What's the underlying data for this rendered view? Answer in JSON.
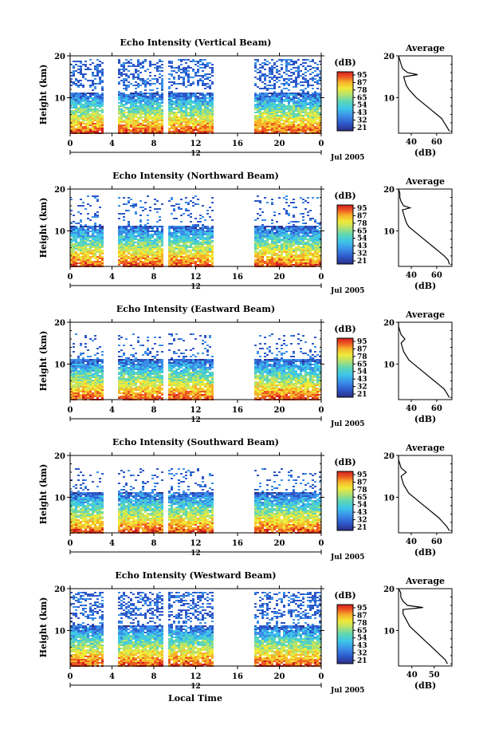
{
  "figure": {
    "colorbar": {
      "unit": "(dB)",
      "ticks": [
        "95",
        "87",
        "78",
        "65",
        "54",
        "43",
        "32",
        "21"
      ],
      "colors": [
        "#2b2f86",
        "#2d57c8",
        "#3b8ee8",
        "#3ec6e8",
        "#5fd6b4",
        "#b8e36a",
        "#f0ea3a",
        "#f6b42a",
        "#ee5a22",
        "#d31f1f"
      ]
    },
    "date_label": "Jul 2005",
    "mid_label": "12",
    "x_axis_title": "Local Time",
    "y_axis_title": "Height (km)",
    "avg_title": "Average",
    "avg_xlabel": "(dB)"
  },
  "chart_data": [
    {
      "type": "heatmap",
      "title": "Echo Intensity (Vertical Beam)",
      "ylabel": "Height (km)",
      "x_ticks": [
        "0",
        "4",
        "8",
        "12",
        "16",
        "20",
        "0"
      ],
      "y_ticks": [
        "20",
        "10"
      ],
      "xlim": [
        0,
        24
      ],
      "ylim": [
        1.5,
        20
      ],
      "gaps": [
        [
          3.2,
          4.4
        ],
        [
          8.9,
          9.2
        ],
        [
          13.5,
          17.4
        ]
      ],
      "echo_top_km": 19.5,
      "profile": {
        "title": "Average",
        "xlabel": "(dB)",
        "x_ticks": [
          "40",
          "60"
        ],
        "xlim": [
          30,
          72
        ],
        "height_km": [
          2,
          3,
          4,
          5,
          6,
          7,
          8,
          9,
          10,
          11,
          12,
          13,
          14,
          15,
          15.5,
          16,
          17,
          18,
          19,
          20
        ],
        "value_db": [
          70,
          68,
          66,
          64,
          60,
          56,
          52,
          48,
          44,
          41,
          38,
          36,
          35,
          34,
          45,
          37,
          33,
          32,
          31,
          30
        ]
      }
    },
    {
      "type": "heatmap",
      "title": "Echo Intensity (Northward Beam)",
      "ylabel": "Height (km)",
      "x_ticks": [
        "0",
        "4",
        "8",
        "12",
        "16",
        "20",
        "0"
      ],
      "y_ticks": [
        "20",
        "10"
      ],
      "xlim": [
        0,
        24
      ],
      "ylim": [
        1.5,
        20
      ],
      "gaps": [
        [
          3.2,
          4.4
        ],
        [
          8.9,
          9.3
        ],
        [
          13.5,
          17.4
        ]
      ],
      "echo_top_km": 18.5,
      "profile": {
        "title": "Average",
        "xlabel": "(dB)",
        "x_ticks": [
          "40",
          "60"
        ],
        "xlim": [
          30,
          72
        ],
        "height_km": [
          2,
          3,
          4,
          5,
          6,
          7,
          8,
          9,
          10,
          11,
          12,
          13,
          14,
          15,
          15.5,
          16,
          17,
          18,
          19,
          20
        ],
        "value_db": [
          70,
          69,
          66,
          62,
          58,
          54,
          50,
          46,
          42,
          38,
          36,
          35,
          34,
          33,
          39,
          34,
          32,
          31,
          31,
          30
        ]
      }
    },
    {
      "type": "heatmap",
      "title": "Echo Intensity (Eastward Beam)",
      "ylabel": "Height (km)",
      "x_ticks": [
        "0",
        "4",
        "8",
        "12",
        "16",
        "20",
        "0"
      ],
      "y_ticks": [
        "20",
        "10"
      ],
      "xlim": [
        0,
        24
      ],
      "ylim": [
        1.5,
        20
      ],
      "gaps": [
        [
          3.2,
          4.4
        ],
        [
          8.9,
          9.3
        ],
        [
          13.5,
          17.4
        ]
      ],
      "echo_top_km": 17.5,
      "profile": {
        "title": "Average",
        "xlabel": "(dB)",
        "x_ticks": [
          "40",
          "60"
        ],
        "xlim": [
          30,
          72
        ],
        "height_km": [
          2,
          3,
          4,
          5,
          6,
          7,
          8,
          9,
          10,
          11,
          12,
          13,
          14,
          15,
          16,
          17,
          18,
          19,
          20
        ],
        "value_db": [
          70,
          68,
          66,
          62,
          58,
          54,
          50,
          46,
          42,
          38,
          36,
          34,
          33,
          32,
          35,
          32,
          31,
          30,
          30
        ]
      }
    },
    {
      "type": "heatmap",
      "title": "Echo Intensity (Southward Beam)",
      "ylabel": "Height (km)",
      "x_ticks": [
        "0",
        "4",
        "8",
        "12",
        "16",
        "20",
        "0"
      ],
      "y_ticks": [
        "20",
        "10"
      ],
      "xlim": [
        0,
        24
      ],
      "ylim": [
        1.5,
        20
      ],
      "gaps": [
        [
          3.2,
          4.4
        ],
        [
          8.9,
          9.3
        ],
        [
          13.5,
          17.4
        ]
      ],
      "echo_top_km": 17.0,
      "profile": {
        "title": "Average",
        "xlabel": "(dB)",
        "x_ticks": [
          "40",
          "60"
        ],
        "xlim": [
          30,
          72
        ],
        "height_km": [
          2,
          3,
          4,
          5,
          6,
          7,
          8,
          9,
          10,
          11,
          12,
          13,
          14,
          15,
          16,
          17,
          18,
          19,
          20
        ],
        "value_db": [
          70,
          68,
          65,
          62,
          58,
          54,
          50,
          46,
          42,
          38,
          36,
          34,
          33,
          32,
          36,
          32,
          31,
          30,
          30
        ]
      }
    },
    {
      "type": "heatmap",
      "title": "Echo Intensity (Westward Beam)",
      "ylabel": "Height (km)",
      "x_ticks": [
        "0",
        "4",
        "8",
        "12",
        "16",
        "20",
        "0"
      ],
      "y_ticks": [
        "20",
        "10"
      ],
      "xlim": [
        0,
        24
      ],
      "ylim": [
        1.5,
        20
      ],
      "gaps": [
        [
          3.2,
          4.4
        ],
        [
          8.9,
          9.3
        ],
        [
          13.5,
          17.4
        ]
      ],
      "echo_top_km": 19.5,
      "profile": {
        "title": "Average",
        "xlabel": "(dB)",
        "x_ticks": [
          "40",
          "50"
        ],
        "xlim": [
          34,
          58
        ],
        "height_km": [
          2,
          3,
          4,
          5,
          6,
          7,
          8,
          9,
          10,
          11,
          12,
          13,
          14,
          15,
          15.5,
          16,
          17,
          18,
          19,
          20
        ],
        "value_db": [
          56,
          55,
          53,
          51,
          49,
          47,
          45,
          43,
          41,
          39,
          38,
          37,
          36,
          36,
          45,
          38,
          36,
          35,
          35,
          34
        ]
      }
    }
  ]
}
